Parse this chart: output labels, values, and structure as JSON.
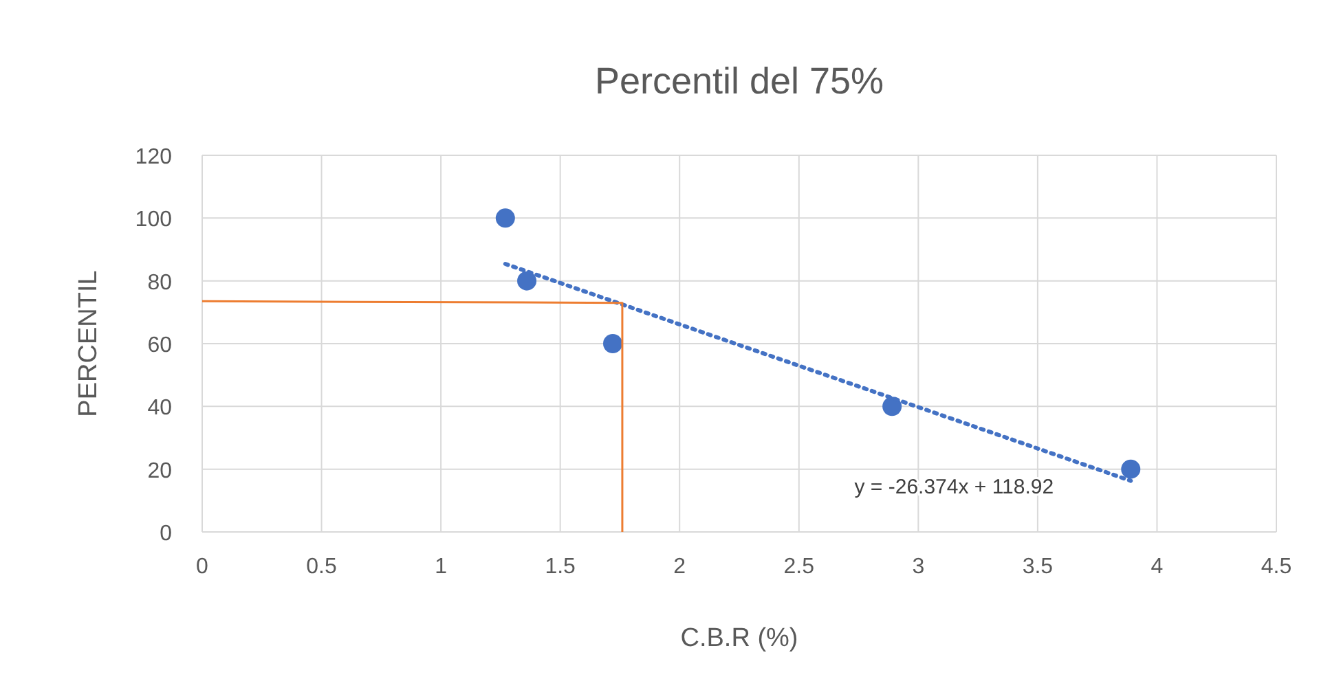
{
  "chart_data": {
    "type": "scatter",
    "title": "Percentil del 75%",
    "xlabel": "C.B.R (%)",
    "ylabel": "PERCENTIL",
    "xlim": [
      0,
      4.5
    ],
    "xticks": [
      0,
      0.5,
      1,
      1.5,
      2,
      2.5,
      3,
      3.5,
      4,
      4.5
    ],
    "ylim": [
      0,
      120
    ],
    "yticks": [
      0,
      20,
      40,
      60,
      80,
      100,
      120
    ],
    "grid": true,
    "series": [
      {
        "color": "#4472c4",
        "marker": "circle",
        "x": [
          1.27,
          1.36,
          1.72,
          2.89,
          3.89
        ],
        "values": [
          100,
          80,
          60,
          40,
          20
        ]
      },
      {
        "type": "line",
        "color": "#4472c4",
        "line_style": "dotted",
        "marker": "none",
        "x": [
          1.27,
          3.89
        ],
        "values": [
          85.4,
          16.3
        ]
      },
      {
        "type": "line",
        "color": "#ed7d31",
        "line_style": "solid",
        "marker": "none",
        "x": [
          0,
          1.76,
          1.76
        ],
        "values": [
          73.5,
          73,
          0
        ]
      }
    ],
    "annotations": [
      "y = -26.374x + 118.92"
    ]
  }
}
